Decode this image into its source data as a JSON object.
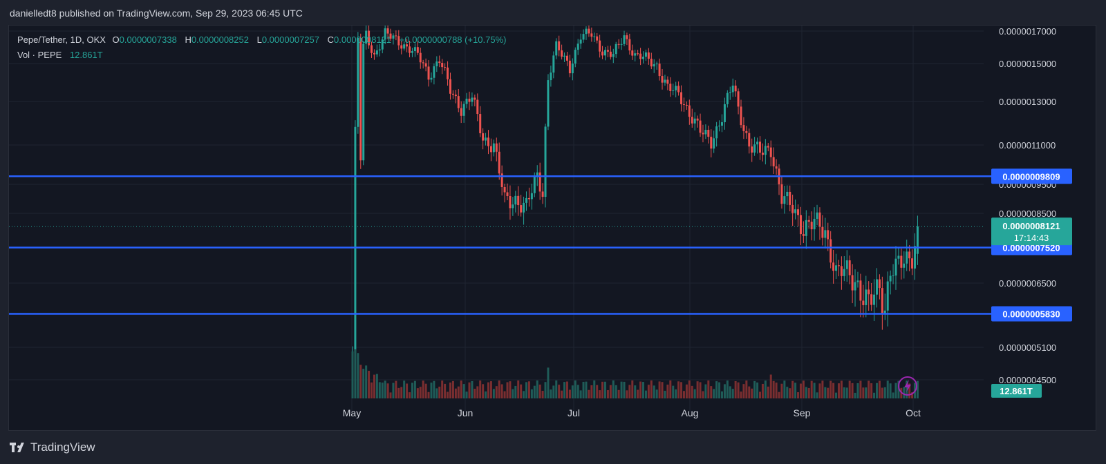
{
  "header": {
    "publish_text": "danielledt8 published on TradingView.com, Sep 29, 2023 06:45 UTC"
  },
  "legend": {
    "symbol": "Pepe/Tether, 1D, OKX",
    "open_label": "O",
    "open": "0.0000007338",
    "high_label": "H",
    "high": "0.0000008252",
    "low_label": "L",
    "low": "0.0000007257",
    "close_label": "C",
    "close": "0.0000008121",
    "change": "+0.0000000788 (+10.75%)",
    "vol_label": "Vol · PEPE",
    "vol_value": "12.861T"
  },
  "footer": {
    "brand": "TradingView"
  },
  "colors": {
    "up": "#26a69a",
    "down": "#ef5350",
    "vol_up": "#1f5c58",
    "vol_down": "#7a2e30",
    "hline": "#2962ff",
    "background": "#131722",
    "grid": "#1f2431"
  },
  "chart_data": {
    "type": "candlestick",
    "x_axis": {
      "labels": [
        "May",
        "Jun",
        "Jul",
        "Aug",
        "Sep",
        "Oct"
      ]
    },
    "y_axis": {
      "ticks": [
        "0.0000017000",
        "0.0000015000",
        "0.0000013000",
        "0.0000011000",
        "0.0000009500",
        "0.0000008500",
        "0.0000006500",
        "0.0000005100",
        "0.0000004500"
      ],
      "range": [
        4e-07,
        1.7e-06
      ]
    },
    "horizontal_lines": [
      {
        "label": "0.0000009809",
        "value": 9.809e-07
      },
      {
        "label": "0.0000007520",
        "value": 7.52e-07
      },
      {
        "label": "0.0000005830",
        "value": 5.83e-07
      }
    ],
    "last_price": {
      "label": "0.0000008121",
      "countdown": "17:14:43",
      "value": 8.121e-07
    },
    "volume_label": "12.861T",
    "candles": [
      [
        0.0,
        0,
        0,
        0,
        0
      ]
    ]
  }
}
